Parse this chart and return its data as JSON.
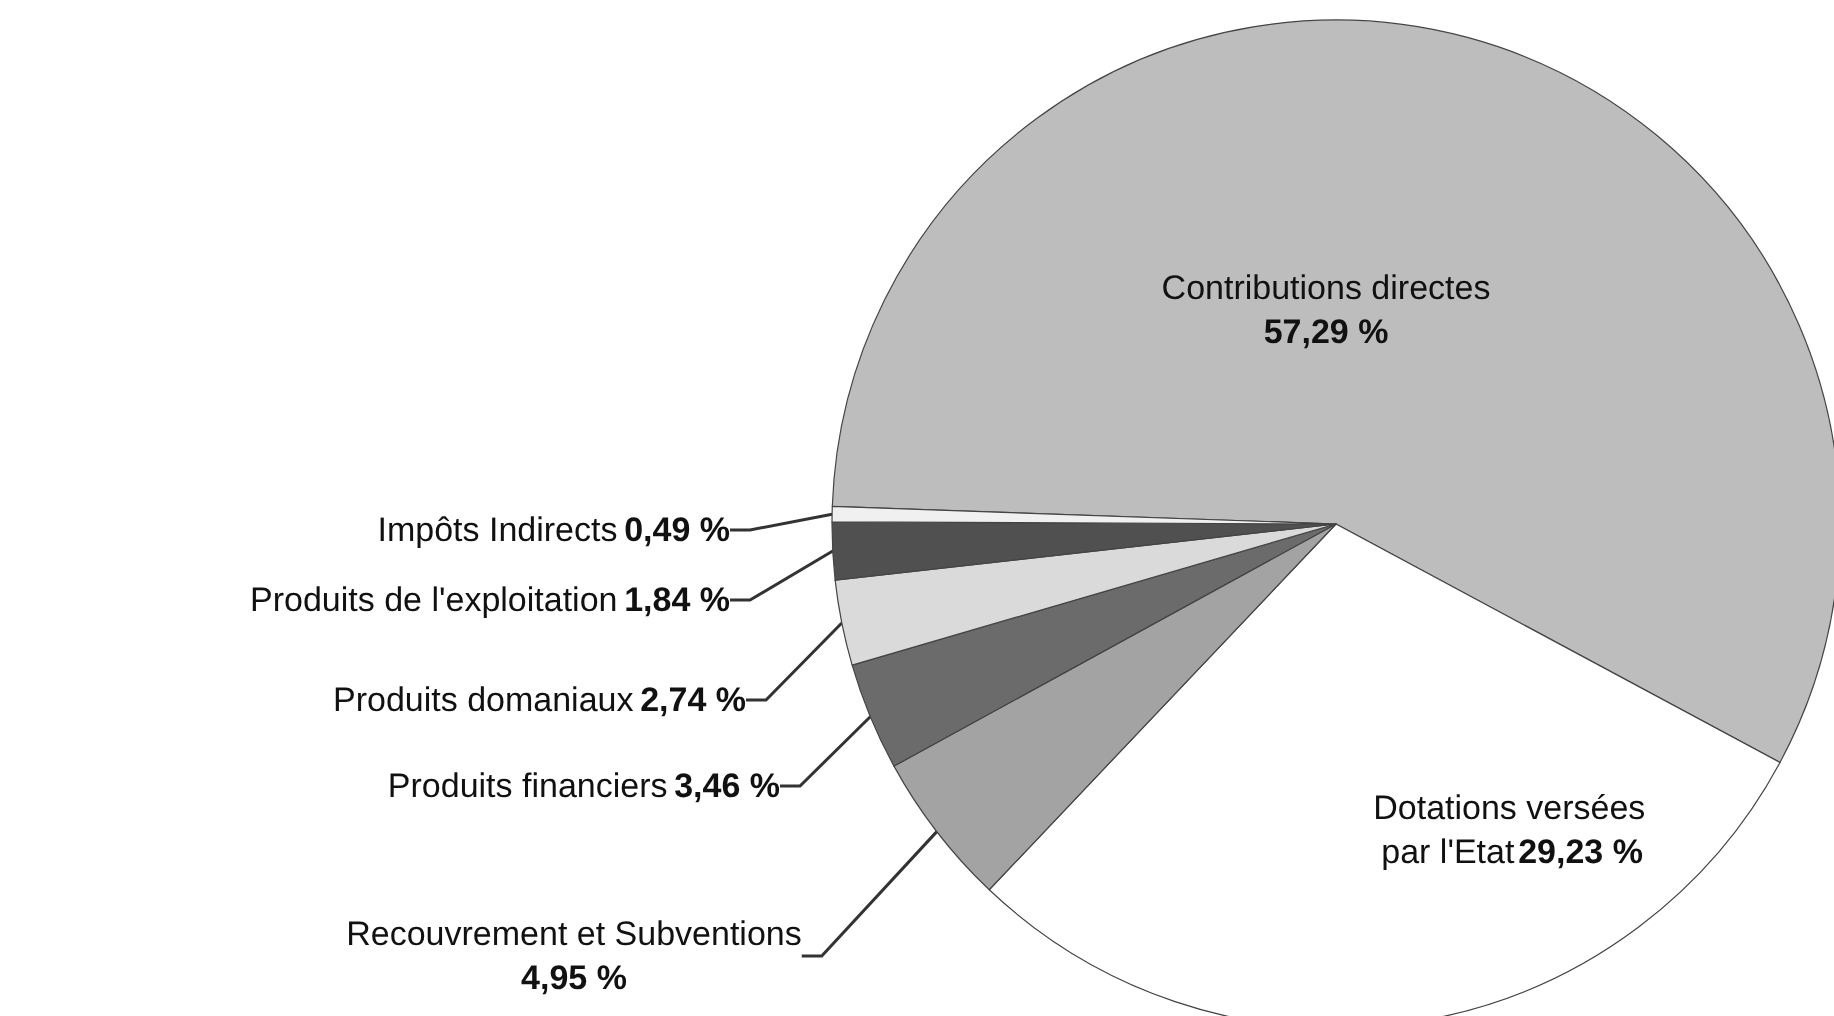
{
  "chart_data": {
    "type": "pie",
    "categories": [
      "Contributions directes",
      "Dotations versées par l'Etat",
      "Recouvrement et Subventions",
      "Produits financiers",
      "Produits domaniaux",
      "Produits de l'exploitation",
      "Impôts Indirects"
    ],
    "values": [
      57.29,
      29.23,
      4.95,
      3.46,
      2.74,
      1.84,
      0.49
    ],
    "value_labels": [
      "57,29 %",
      "29,23 %",
      "4,95 %",
      "3,46 %",
      "2,74 %",
      "1,84 %",
      "0,49 %"
    ],
    "colors": [
      "#bdbdbd",
      "#ffffff",
      "#a3a3a3",
      "#6b6b6b",
      "#dadada",
      "#505050",
      "#f0f0f0"
    ]
  }
}
